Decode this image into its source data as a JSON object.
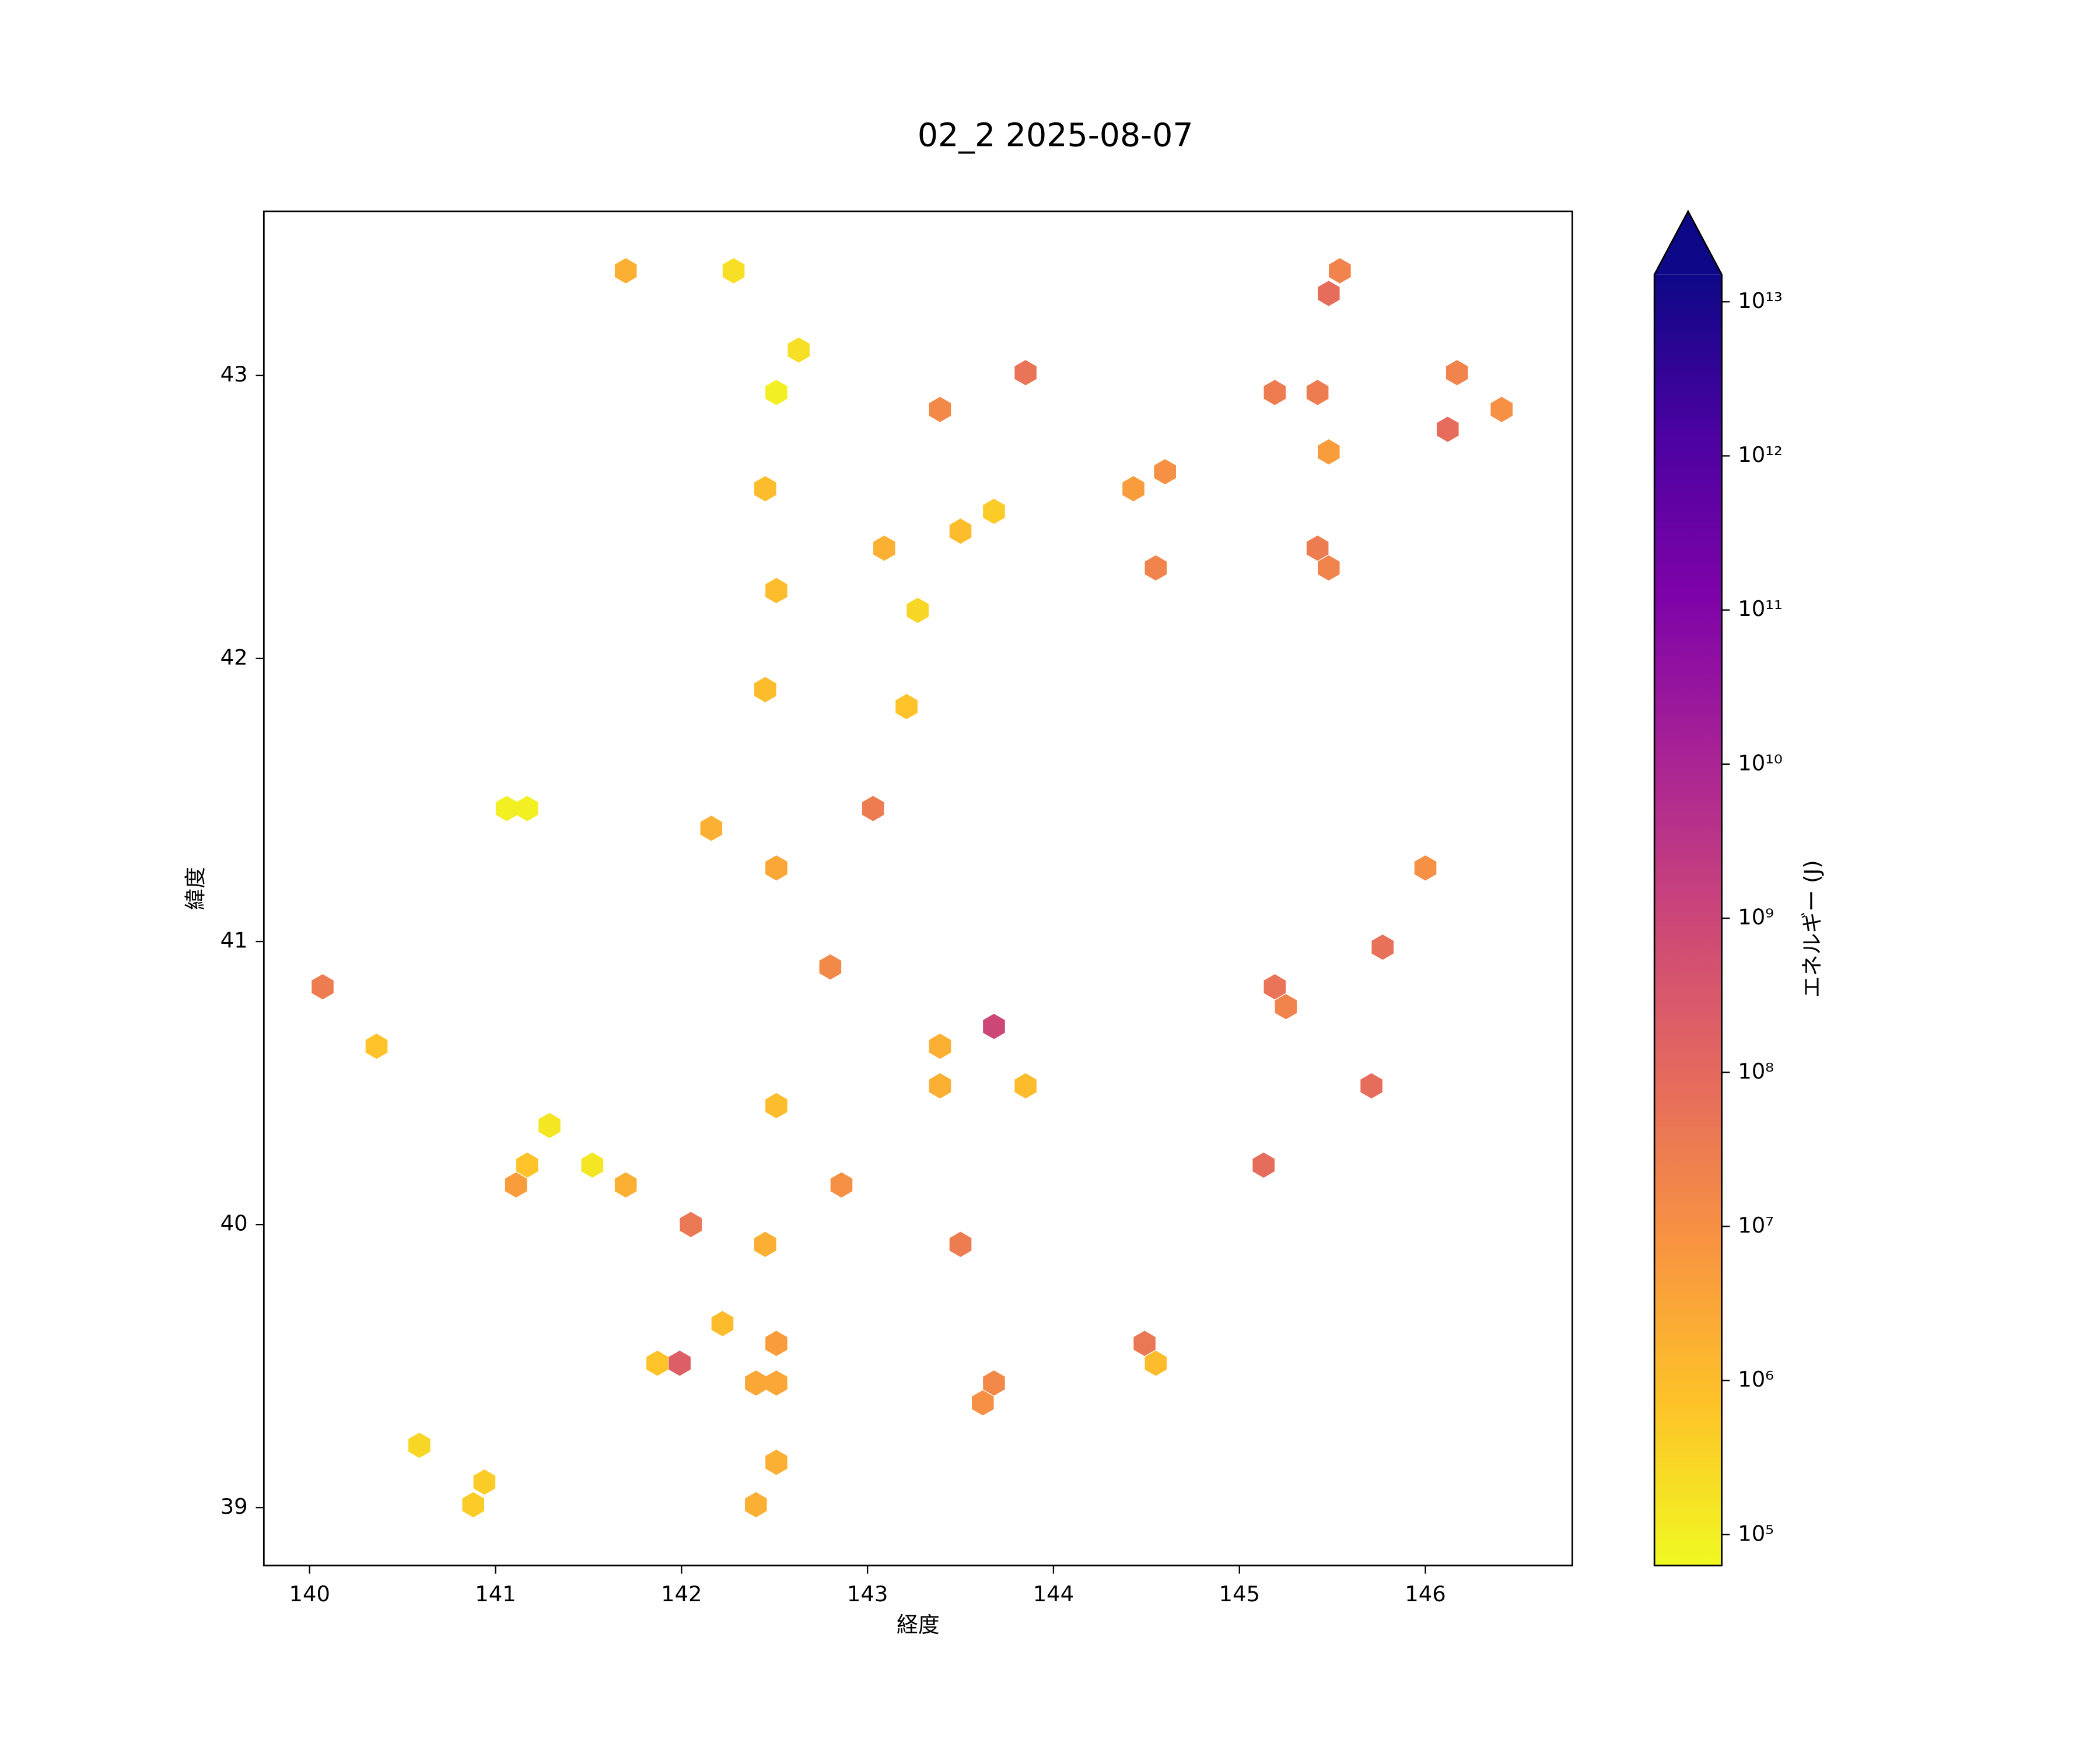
{
  "chart_data": {
    "type": "hexbin",
    "title": "02_2 2025-08-07",
    "x_label": "経度",
    "y_label": "緯度",
    "colorbar_label": "エネルギー (J)",
    "x": [
      141.7,
      142.28,
      142.63,
      142.51,
      143.85,
      143.39,
      145.54,
      145.48,
      145.19,
      145.42,
      146.17,
      146.41,
      146.12,
      145.48,
      144.6,
      144.43,
      142.45,
      143.68,
      143.5,
      143.09,
      145.42,
      145.48,
      144.55,
      142.51,
      143.27,
      142.45,
      143.21,
      141.06,
      141.17,
      142.16,
      143.03,
      142.51,
      146.0,
      145.77,
      142.8,
      140.07,
      145.19,
      145.25,
      143.68,
      140.36,
      143.39,
      143.39,
      143.85,
      145.71,
      142.51,
      141.29,
      141.17,
      141.52,
      145.13,
      141.11,
      141.7,
      142.86,
      142.05,
      142.45,
      143.5,
      142.22,
      142.51,
      144.49,
      141.87,
      141.99,
      144.55,
      142.4,
      142.51,
      143.68,
      143.62,
      140.59,
      140.94,
      140.88,
      142.51,
      142.4
    ],
    "y": [
      43.37,
      43.37,
      43.09,
      42.94,
      43.01,
      42.88,
      43.37,
      43.29,
      42.94,
      42.94,
      43.01,
      42.88,
      42.81,
      42.73,
      42.66,
      42.6,
      42.6,
      42.52,
      42.45,
      42.39,
      42.39,
      42.32,
      42.32,
      42.24,
      42.17,
      41.89,
      41.83,
      41.47,
      41.47,
      41.4,
      41.47,
      41.26,
      41.26,
      40.98,
      40.91,
      40.84,
      40.84,
      40.77,
      40.7,
      40.63,
      40.63,
      40.49,
      40.49,
      40.49,
      40.42,
      40.35,
      40.21,
      40.21,
      40.21,
      40.14,
      40.14,
      40.14,
      40.0,
      39.93,
      39.93,
      39.65,
      39.58,
      39.58,
      39.51,
      39.51,
      39.51,
      39.44,
      39.44,
      39.44,
      39.37,
      39.22,
      39.09,
      39.01,
      39.16,
      39.01
    ],
    "values": [
      2000000,
      200000,
      200000,
      100000,
      50000000,
      15000000,
      20000000,
      80000000,
      30000000,
      30000000,
      20000000,
      10000000,
      80000000,
      5000000,
      10000000,
      5000000,
      1000000,
      500000,
      1000000,
      2000000,
      30000000,
      20000000,
      20000000,
      1000000,
      300000,
      1000000,
      700000,
      100000,
      100000,
      2000000,
      30000000,
      3000000,
      10000000,
      60000000,
      15000000,
      30000000,
      50000000,
      20000000,
      1000000000,
      700000,
      2000000,
      2000000,
      1000000,
      80000000,
      1000000,
      150000,
      700000,
      150000,
      80000000,
      5000000,
      2000000,
      10000000,
      40000000,
      2000000,
      30000000,
      1000000,
      5000000,
      40000000,
      700000,
      200000000,
      1000000,
      3000000,
      3000000,
      15000000,
      10000000,
      300000,
      500000,
      500000,
      2000000,
      2000000
    ],
    "xlim": [
      139.754,
      146.79
    ],
    "ylim": [
      38.795,
      43.58
    ],
    "xticks": [
      140,
      141,
      142,
      143,
      144,
      145,
      146
    ],
    "yticks": [
      39,
      40,
      41,
      42,
      43
    ],
    "clim": [
      63000,
      15000000000000
    ],
    "colorbar_scale": "log",
    "colorbar_extend": "max",
    "colorbar_ticks": [
      {
        "value": 100000,
        "label": "10⁵"
      },
      {
        "value": 1000000,
        "label": "10⁶"
      },
      {
        "value": 10000000,
        "label": "10⁷"
      },
      {
        "value": 100000000,
        "label": "10⁸"
      },
      {
        "value": 1000000000,
        "label": "10⁹"
      },
      {
        "value": 10000000000,
        "label": "10¹⁰"
      },
      {
        "value": 100000000000,
        "label": "10¹¹"
      },
      {
        "value": 1000000000000,
        "label": "10¹²"
      },
      {
        "value": 10000000000000,
        "label": "10¹³"
      }
    ],
    "colormap": [
      "#f0f921",
      "#fdc328",
      "#f89441",
      "#e56b5d",
      "#cc4778",
      "#a92395",
      "#7e03a8",
      "#4c02a1",
      "#0d0887"
    ]
  }
}
